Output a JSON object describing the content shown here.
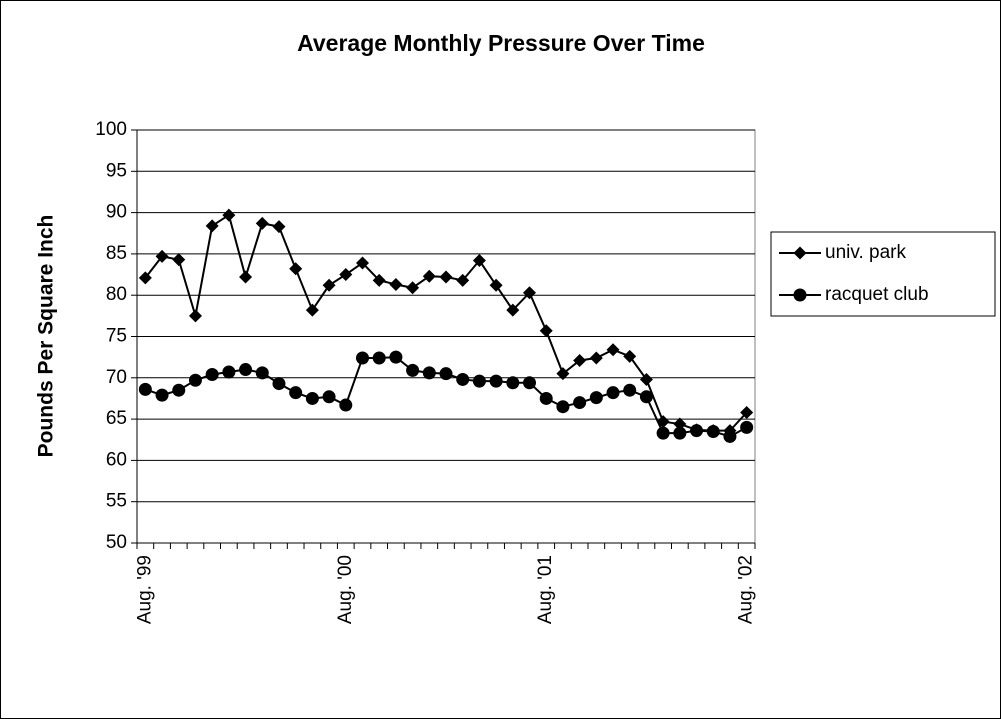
{
  "chart_data": {
    "type": "line",
    "title": "Average Monthly Pressure Over Time",
    "y_label": "Pounds Per Square Inch",
    "categories": [
      "Aug. '99",
      null,
      null,
      null,
      null,
      null,
      null,
      null,
      null,
      null,
      null,
      null,
      "Aug. '00",
      null,
      null,
      null,
      null,
      null,
      null,
      null,
      null,
      null,
      null,
      null,
      "Aug. '01",
      null,
      null,
      null,
      null,
      null,
      null,
      null,
      null,
      null,
      null,
      null,
      "Aug. '02"
    ],
    "series": [
      {
        "name": "univ. park",
        "color": "#000000",
        "marker": "diamond",
        "values": [
          82.1,
          84.7,
          84.3,
          77.5,
          88.4,
          89.7,
          82.2,
          88.7,
          88.3,
          83.2,
          78.2,
          81.2,
          82.5,
          83.9,
          81.8,
          81.3,
          80.9,
          82.3,
          82.2,
          81.8,
          84.2,
          81.2,
          78.2,
          80.3,
          75.7,
          70.5,
          72.1,
          72.4,
          73.4,
          72.6,
          69.8,
          64.7,
          64.4,
          63.7,
          63.6,
          63.6,
          65.8
        ]
      },
      {
        "name": "racquet club",
        "color": "#000000",
        "marker": "circle",
        "values": [
          68.6,
          67.9,
          68.5,
          69.7,
          70.4,
          70.7,
          71.0,
          70.6,
          69.3,
          68.2,
          67.5,
          67.7,
          66.7,
          72.4,
          72.4,
          72.5,
          70.9,
          70.6,
          70.5,
          69.8,
          69.6,
          69.6,
          69.4,
          69.4,
          67.5,
          66.5,
          67.0,
          67.6,
          68.2,
          68.5,
          67.7,
          63.3,
          63.3,
          63.6,
          63.5,
          62.9,
          64.0
        ]
      }
    ],
    "ylim": [
      50,
      100
    ],
    "yticks": [
      50,
      55,
      60,
      65,
      70,
      75,
      80,
      85,
      90,
      95,
      100
    ],
    "grid": true,
    "legend": "right"
  }
}
